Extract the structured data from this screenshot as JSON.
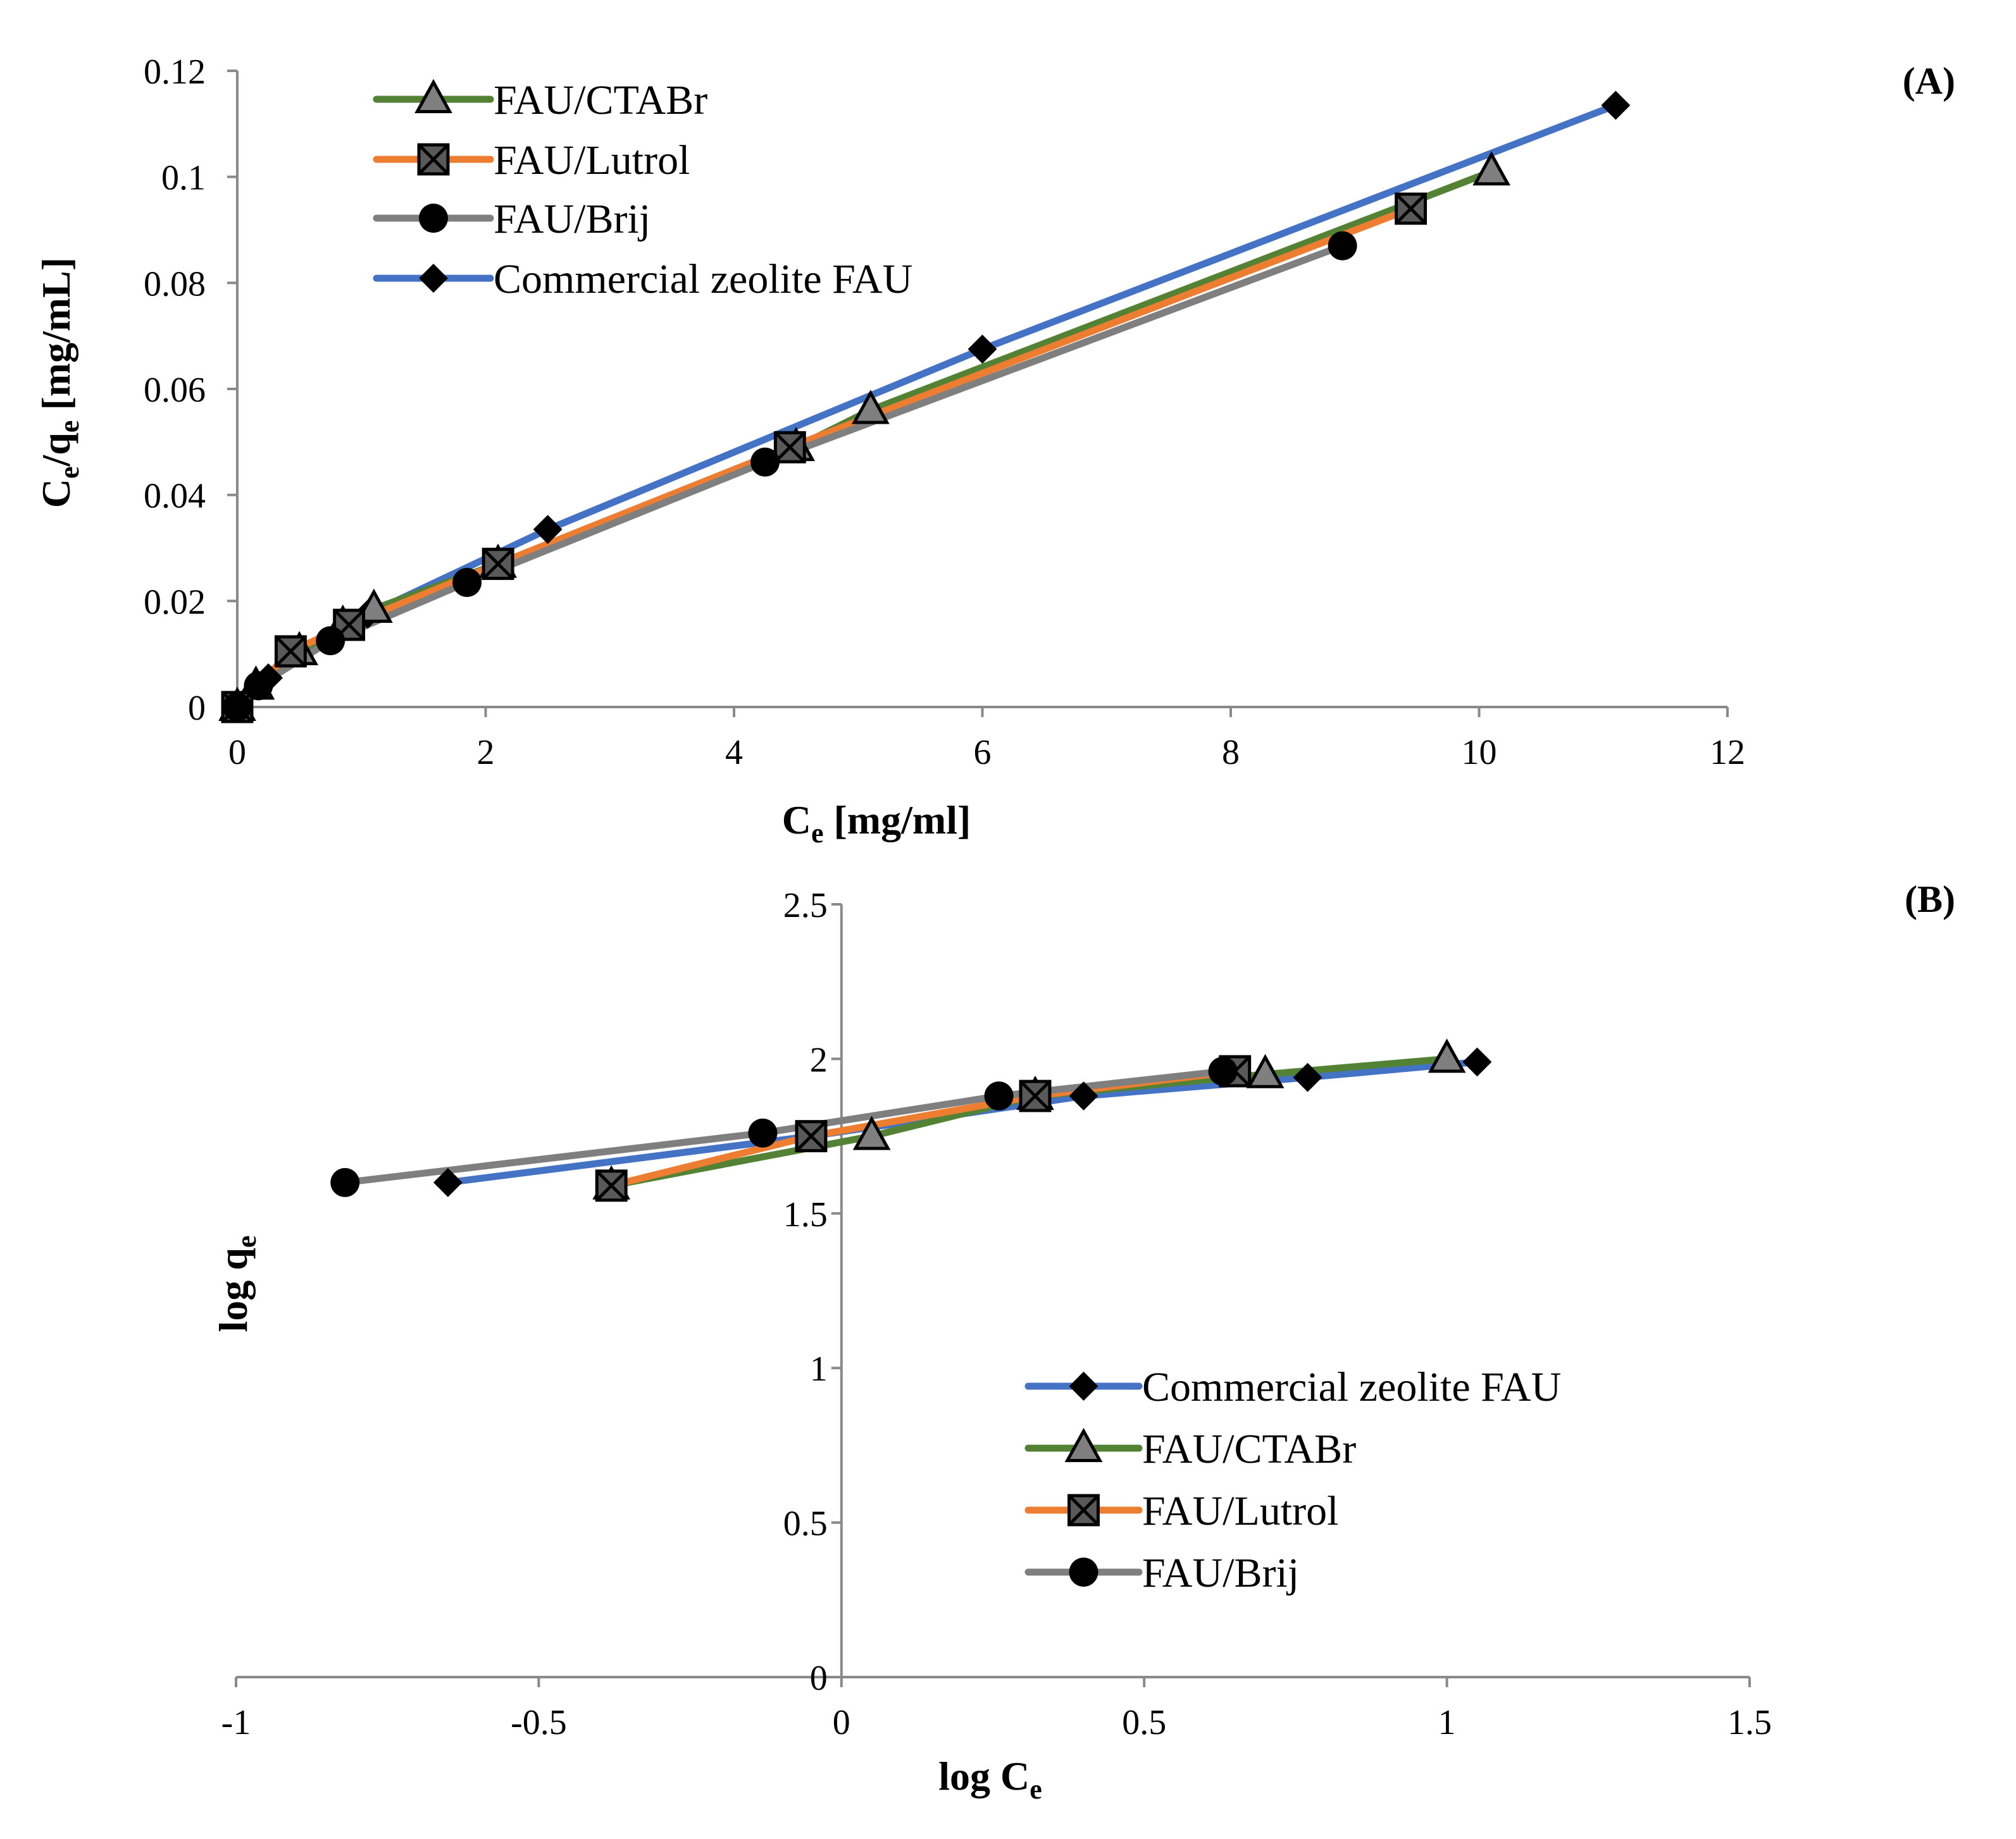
{
  "chart_data": [
    {
      "panel_label": "(A)",
      "type": "line",
      "xlabel": {
        "main": "C",
        "sub": "e",
        "rest": " [mg/ml]"
      },
      "ylabel": {
        "c": "C",
        "c_sub": "e",
        "slash": "/q",
        "q_sub": "e",
        "rest": " [mg/mL]"
      },
      "xlim": [
        0,
        12
      ],
      "ylim": [
        0,
        0.12
      ],
      "x_ticks": [
        "0",
        "2",
        "4",
        "6",
        "8",
        "10",
        "12"
      ],
      "y_ticks": [
        "0",
        "0.02",
        "0.04",
        "0.06",
        "0.08",
        "0.1",
        "0.12"
      ],
      "legend_position": "top-left",
      "series": [
        {
          "name": "FAU/CTABr",
          "color": "#548235",
          "marker": "triangle",
          "x": [
            0,
            0.15,
            0.5,
            0.85,
            1.1,
            2.1,
            4.5,
            5.1,
            10.1
          ],
          "y": [
            0,
            0.004,
            0.0105,
            0.0155,
            0.0185,
            0.027,
            0.049,
            0.056,
            0.101
          ]
        },
        {
          "name": "FAU/Lutrol",
          "color": "#ED7D31",
          "marker": "boxx",
          "x": [
            0,
            0.43,
            0.9,
            2.1,
            4.45,
            9.45
          ],
          "y": [
            0,
            0.0105,
            0.0155,
            0.027,
            0.049,
            0.094
          ]
        },
        {
          "name": "FAU/Brij",
          "color": "#7F7F7F",
          "marker": "circle",
          "x": [
            0,
            0.17,
            0.75,
            1.85,
            4.25,
            8.9
          ],
          "y": [
            0,
            0.004,
            0.0125,
            0.0235,
            0.0462,
            0.087
          ]
        },
        {
          "name": "Commercial zeolite FAU",
          "color": "#4472C4",
          "marker": "diamond",
          "x": [
            0,
            0.25,
            1.05,
            2.5,
            6.0,
            11.1
          ],
          "y": [
            0,
            0.0055,
            0.0175,
            0.0335,
            0.0675,
            0.1135
          ]
        }
      ]
    },
    {
      "panel_label": "(B)",
      "type": "line",
      "xlabel": {
        "main": "log C",
        "sub": "e",
        "rest": ""
      },
      "ylabel": {
        "main": "log q",
        "sub": "e"
      },
      "xlim": [
        -1,
        1.5
      ],
      "ylim": [
        0,
        2.5
      ],
      "x_ticks": [
        "-1",
        "-0.5",
        "0",
        "0.5",
        "1",
        "1.5"
      ],
      "y_ticks": [
        "0",
        "0.5",
        "1",
        "1.5",
        "2",
        "2.5"
      ],
      "legend_position": "bottom-right",
      "series": [
        {
          "name": "Commercial zeolite FAU",
          "color": "#4472C4",
          "marker": "diamond",
          "x": [
            -0.65,
            -0.05,
            0.4,
            0.77,
            1.05
          ],
          "y": [
            1.6,
            1.75,
            1.88,
            1.94,
            1.99
          ]
        },
        {
          "name": "FAU/CTABr",
          "color": "#548235",
          "marker": "triangle",
          "x": [
            -0.38,
            0.05,
            0.32,
            0.7,
            1.0
          ],
          "y": [
            1.59,
            1.75,
            1.88,
            1.95,
            2.0
          ]
        },
        {
          "name": "FAU/Lutrol",
          "color": "#ED7D31",
          "marker": "boxx",
          "x": [
            -0.38,
            -0.05,
            0.32,
            0.65
          ],
          "y": [
            1.59,
            1.75,
            1.88,
            1.96
          ]
        },
        {
          "name": "FAU/Brij",
          "color": "#7F7F7F",
          "marker": "circle",
          "x": [
            -0.82,
            -0.13,
            0.26,
            0.63
          ],
          "y": [
            1.6,
            1.76,
            1.88,
            1.96
          ]
        }
      ]
    }
  ]
}
